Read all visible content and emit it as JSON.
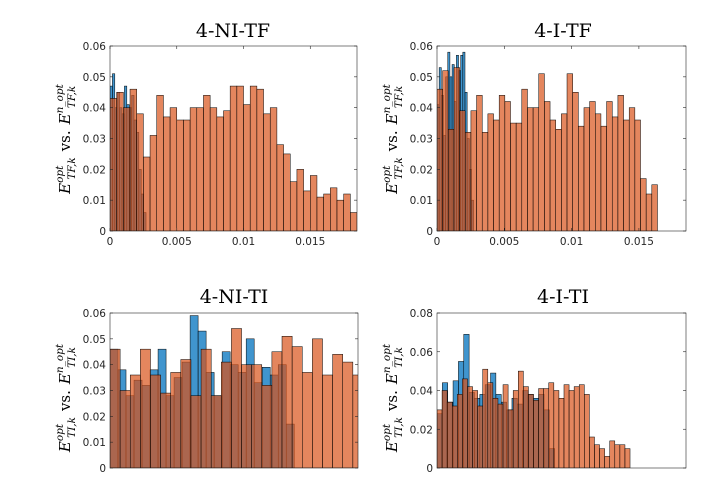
{
  "chart_data": [
    {
      "type": "histogram",
      "title": "4-NI-TF",
      "ylabel": {
        "a": "E",
        "a_sup": "opt",
        "a_sub": "TF,k",
        "vs": "vs.",
        "b": "E",
        "b_sup": "n_opt",
        "b_sub": "TF,k"
      },
      "xlim": [
        0,
        0.0185
      ],
      "ylim": [
        0,
        0.06
      ],
      "xticks": [
        0,
        0.005,
        0.01,
        0.015
      ],
      "xtick_labels": [
        "0",
        "0.005",
        "0.01",
        "0.015"
      ],
      "yticks": [
        0,
        0.01,
        0.02,
        0.03,
        0.04,
        0.05,
        0.06
      ],
      "ytick_labels": [
        "0",
        "0.01",
        "0.02",
        "0.03",
        "0.04",
        "0.05",
        "0.06"
      ],
      "series": [
        {
          "color": "#0072BD",
          "bin_start": 0,
          "bin_width": 0.00018,
          "values": [
            0.047,
            0.051,
            0.04,
            0.045,
            0.04,
            0.038,
            0.047,
            0.041,
            0.04,
            0.044,
            0.036,
            0.032,
            0.02,
            0.012,
            0.006
          ]
        },
        {
          "color": "#D95319",
          "bin_start": 0,
          "bin_width": 0.0005,
          "values": [
            0.043,
            0.045,
            0.04,
            0.046,
            0.038,
            0.024,
            0.031,
            0.044,
            0.037,
            0.04,
            0.036,
            0.036,
            0.04,
            0.04,
            0.044,
            0.04,
            0.037,
            0.039,
            0.047,
            0.047,
            0.041,
            0.047,
            0.046,
            0.038,
            0.04,
            0.028,
            0.025,
            0.016,
            0.02,
            0.013,
            0.018,
            0.011,
            0.012,
            0.014,
            0.01,
            0.012,
            0.006
          ]
        }
      ]
    },
    {
      "type": "histogram",
      "title": "4-I-TF",
      "ylabel": {
        "a": "E",
        "a_sup": "opt",
        "a_sub": "TF,k",
        "vs": "vs.",
        "b": "E",
        "b_sup": "n_opt",
        "b_sub": "TF,k"
      },
      "xlim": [
        0,
        0.0185
      ],
      "ylim": [
        0,
        0.06
      ],
      "xticks": [
        0,
        0.005,
        0.01,
        0.015
      ],
      "xtick_labels": [
        "0",
        "0.005",
        "0.01",
        "0.015"
      ],
      "yticks": [
        0,
        0.01,
        0.02,
        0.03,
        0.04,
        0.05,
        0.06
      ],
      "ytick_labels": [
        "0",
        "0.01",
        "0.02",
        "0.03",
        "0.04",
        "0.05",
        "0.06"
      ],
      "series": [
        {
          "color": "#0072BD",
          "bin_start": 0,
          "bin_width": 0.00016,
          "values": [
            0.041,
            0.053,
            0.044,
            0.031,
            0.05,
            0.058,
            0.05,
            0.054,
            0.042,
            0.057,
            0.052,
            0.057,
            0.058,
            0.045,
            0.03,
            0.02,
            0.01
          ]
        },
        {
          "color": "#D95319",
          "bin_start": 0,
          "bin_width": 0.00042,
          "values": [
            0.046,
            0.052,
            0.033,
            0.053,
            0.039,
            0.032,
            0.039,
            0.044,
            0.032,
            0.038,
            0.036,
            0.044,
            0.042,
            0.035,
            0.035,
            0.046,
            0.04,
            0.04,
            0.051,
            0.042,
            0.036,
            0.033,
            0.038,
            0.051,
            0.045,
            0.034,
            0.04,
            0.042,
            0.038,
            0.034,
            0.042,
            0.037,
            0.044,
            0.036,
            0.04,
            0.036,
            0.017,
            0.012,
            0.015
          ]
        }
      ]
    },
    {
      "type": "histogram",
      "title": "4-NI-TI",
      "ylabel": {
        "a": "E",
        "a_sup": "opt",
        "a_sub": "TI,k",
        "vs": "vs.",
        "b": "E",
        "b_sup": "n_opt",
        "b_sub": "TI,k"
      },
      "xlim": [
        0,
        1
      ],
      "ylim": [
        0,
        0.06
      ],
      "xticks": [],
      "xtick_labels": [],
      "yticks": [
        0,
        0.01,
        0.02,
        0.03,
        0.04,
        0.05,
        0.06
      ],
      "ytick_labels": [
        "0",
        "0.01",
        "0.02",
        "0.03",
        "0.04",
        "0.05",
        "0.06"
      ],
      "series": [
        {
          "color": "#0072BD",
          "bin_start": 0,
          "bin_width": 0.0323,
          "values": [
            0.046,
            0.038,
            0.028,
            0.034,
            0.032,
            0.038,
            0.046,
            0.028,
            0.035,
            0.041,
            0.059,
            0.053,
            0.037,
            0.028,
            0.045,
            0.04,
            0.037,
            0.05,
            0.033,
            0.039,
            0.036,
            0.04,
            0.017
          ]
        },
        {
          "color": "#D95319",
          "bin_start": 0,
          "bin_width": 0.0408,
          "values": [
            0.046,
            0.03,
            0.036,
            0.046,
            0.036,
            0.029,
            0.037,
            0.042,
            0.028,
            0.046,
            0.028,
            0.041,
            0.054,
            0.04,
            0.04,
            0.032,
            0.045,
            0.051,
            0.047,
            0.037,
            0.05,
            0.036,
            0.044,
            0.041,
            0.036,
            0.044,
            0.034,
            0.034,
            0.011,
            0.02,
            0.01,
            0.012,
            0.01,
            0.021,
            0.01,
            0.016,
            0.012,
            0.019
          ]
        }
      ]
    },
    {
      "type": "histogram",
      "title": "4-I-TI",
      "ylabel": {
        "a": "E",
        "a_sup": "opt",
        "a_sub": "TI,k",
        "vs": "vs.",
        "b": "E",
        "b_sup": "n_opt",
        "b_sub": "TI,k"
      },
      "xlim": [
        0,
        1
      ],
      "ylim": [
        0,
        0.08
      ],
      "xticks": [],
      "xtick_labels": [],
      "yticks": [
        0,
        0.02,
        0.04,
        0.06,
        0.08
      ],
      "ytick_labels": [
        "0",
        "0.02",
        "0.04",
        "0.06",
        "0.08"
      ],
      "series": [
        {
          "color": "#0072BD",
          "bin_start": 0,
          "bin_width": 0.0215,
          "values": [
            0.028,
            0.044,
            0.034,
            0.045,
            0.055,
            0.069,
            0.039,
            0.036,
            0.038,
            0.043,
            0.049,
            0.038,
            0.034,
            0.03,
            0.036,
            0.033,
            0.04,
            0.038,
            0.036,
            0.038,
            0.03,
            0.01
          ]
        },
        {
          "color": "#D95319",
          "bin_start": 0,
          "bin_width": 0.0204,
          "values": [
            0.03,
            0.04,
            0.034,
            0.032,
            0.038,
            0.046,
            0.042,
            0.04,
            0.032,
            0.051,
            0.044,
            0.036,
            0.033,
            0.043,
            0.03,
            0.04,
            0.05,
            0.042,
            0.038,
            0.035,
            0.041,
            0.041,
            0.044,
            0.04,
            0.036,
            0.043,
            0.04,
            0.042,
            0.043,
            0.038,
            0.016,
            0.012,
            0.01,
            0.006,
            0.014,
            0.012,
            0.012,
            0.01
          ]
        }
      ]
    }
  ]
}
